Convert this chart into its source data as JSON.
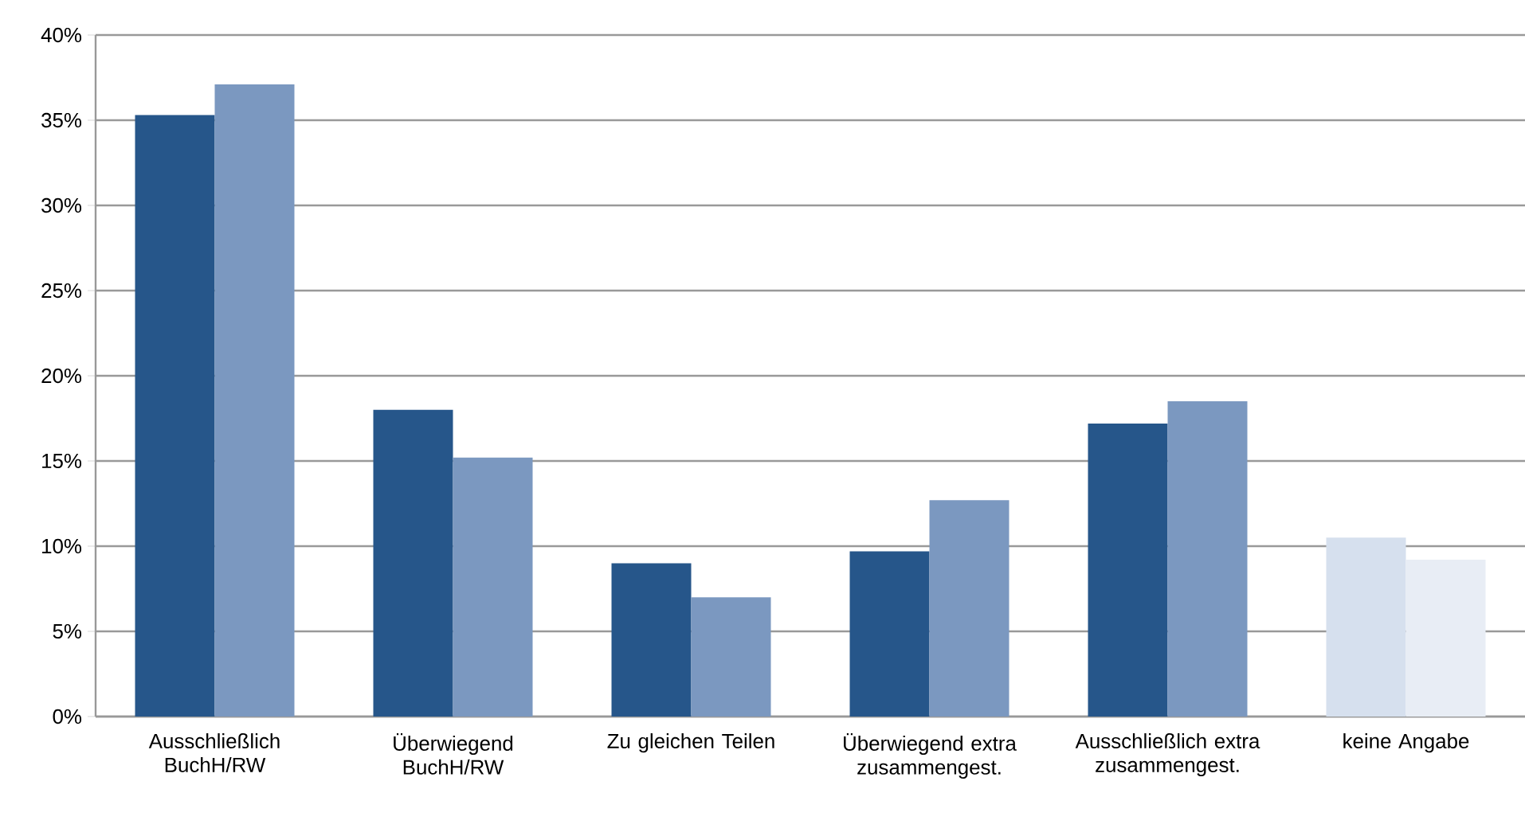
{
  "chart_data": {
    "type": "bar",
    "categories": [
      "Ausschließlich BuchH/RW",
      "Überwiegend BuchH/RW",
      "Zu gleichen Teilen",
      "Überwiegend extra zusammengest.",
      "Ausschließlich extra zusammengest.",
      "keine Angabe"
    ],
    "series": [
      {
        "colors": [
          "#26568a",
          "#26568a",
          "#26568a",
          "#26568a",
          "#26568a",
          "#d6e0ee"
        ],
        "values": [
          35.3,
          18.0,
          9.0,
          9.7,
          17.2,
          10.5
        ]
      },
      {
        "colors": [
          "#7b98c0",
          "#7b98c0",
          "#7b98c0",
          "#7b98c0",
          "#7b98c0",
          "#e8edf5"
        ],
        "values": [
          37.1,
          15.2,
          7.0,
          12.7,
          18.5,
          9.2
        ]
      }
    ],
    "ylim": [
      0,
      40
    ],
    "yticks": [
      {
        "value": 0,
        "label": "0%"
      },
      {
        "value": 5,
        "label": "5%"
      },
      {
        "value": 10,
        "label": "10%"
      },
      {
        "value": 15,
        "label": "15%"
      },
      {
        "value": 20,
        "label": "20%"
      },
      {
        "value": 25,
        "label": "25%"
      },
      {
        "value": 30,
        "label": "30%"
      },
      {
        "value": 35,
        "label": "35%"
      },
      {
        "value": 40,
        "label": "40%"
      }
    ],
    "grid": "y"
  }
}
